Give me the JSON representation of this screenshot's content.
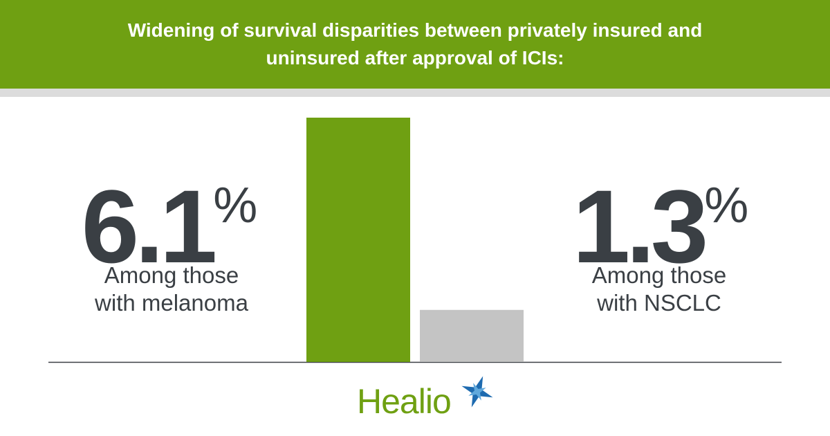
{
  "chart_data": {
    "type": "bar",
    "title": "Widening of survival disparities between privately insured and uninsured after approval of ICIs:",
    "categories": [
      "Among those with melanoma",
      "Among those with NSCLC"
    ],
    "values": [
      6.1,
      1.3
    ],
    "value_labels": [
      "6.1%",
      "1.3%"
    ],
    "colors": [
      "#6fa012",
      "#c4c4c4"
    ]
  },
  "logo": {
    "text": "Healio"
  }
}
